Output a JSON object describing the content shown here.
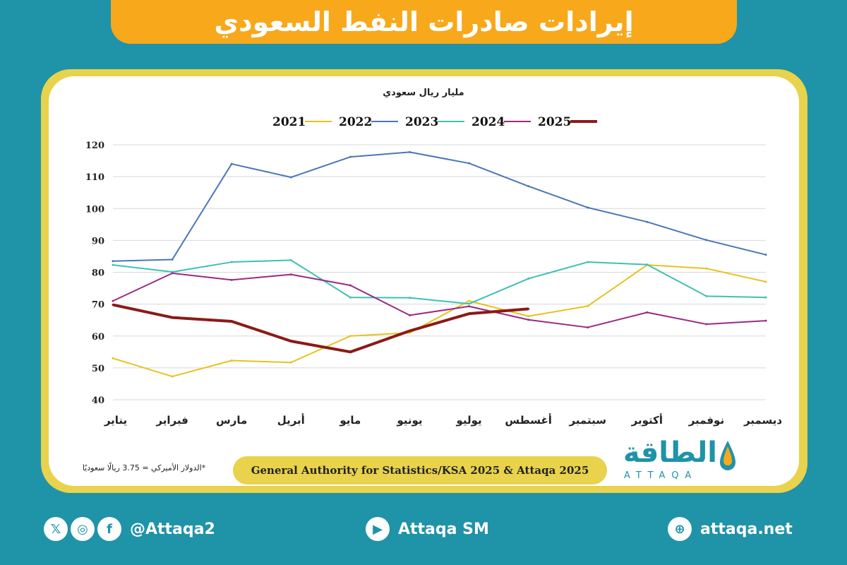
{
  "header": {
    "title": "إيرادات صادرات النفط السعودي"
  },
  "footer": {
    "source": "General Authority for Statistics/KSA 2025 & Attaqa 2025",
    "note": "*الدولار الأميركي = 3.75 ريالًا سعوديًا",
    "logo_ar": "الطاقة",
    "logo_en": "ATTAQA",
    "social_handle": "@Attaqa2",
    "youtube": "Attaqa SM",
    "website": "attaqa.net"
  },
  "icons": [
    "x-icon",
    "instagram-icon",
    "facebook-icon",
    "youtube-icon",
    "globe-icon",
    "drop-logo-icon"
  ],
  "colors": {
    "background": "#1f93a8",
    "title_bar": "#f7a81b",
    "card_border": "#e9d24c"
  },
  "chart_data": {
    "type": "line",
    "title": "",
    "unit_label": "مليار ريال سعودي",
    "categories": [
      "يناير",
      "فبراير",
      "مارس",
      "أبريل",
      "مايو",
      "يونيو",
      "يوليو",
      "أغسطس",
      "سبتمبر",
      "أكتوبر",
      "نوفمبر",
      "ديسمبر"
    ],
    "ylim": [
      40,
      120
    ],
    "yticks": [
      40,
      50,
      60,
      70,
      80,
      90,
      100,
      110,
      120
    ],
    "grid": true,
    "legend_position": "top",
    "series": [
      {
        "name": "2021",
        "color": "#e8c21e",
        "values": [
          53,
          47.3,
          52.3,
          51.7,
          60,
          61,
          71,
          66.2,
          69.4,
          82.3,
          81.2,
          77
        ]
      },
      {
        "name": "2022",
        "color": "#4a76b8",
        "values": [
          83.5,
          84,
          114,
          109.8,
          116.2,
          117.7,
          114.2,
          107,
          100.3,
          95.8,
          90.1,
          85.5
        ]
      },
      {
        "name": "2023",
        "color": "#3fc0b3",
        "values": [
          82.3,
          80.1,
          83.2,
          83.8,
          72.1,
          72,
          70.1,
          78,
          83.2,
          82.4,
          72.5,
          72.1
        ]
      },
      {
        "name": "2024",
        "color": "#9a2a84",
        "values": [
          71,
          79.7,
          77.6,
          79.3,
          75.9,
          66.5,
          69.3,
          65.1,
          62.7,
          67.4,
          63.7,
          64.8
        ]
      },
      {
        "name": "2025",
        "color": "#8b1a16",
        "values": [
          69.8,
          65.8,
          64.6,
          58.4,
          55,
          61.6,
          67,
          68.5,
          null,
          null,
          null,
          null
        ]
      }
    ]
  }
}
